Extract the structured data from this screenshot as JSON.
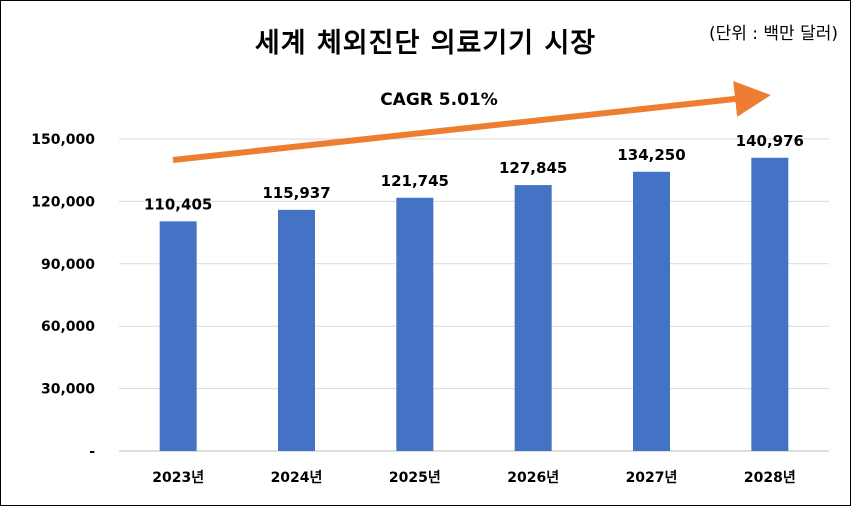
{
  "title": "세계 체외진단 의료기기 시장",
  "unit_note": "(단위 : 백만 달러)",
  "colors": {
    "bar": "#4472C4",
    "arrow": "#ED7D31",
    "grid": "#D9D9D9"
  },
  "chart_data": {
    "type": "bar",
    "categories": [
      "2023년",
      "2024년",
      "2025년",
      "2026년",
      "2027년",
      "2028년"
    ],
    "values": [
      110405,
      115937,
      121745,
      127845,
      134250,
      140976
    ],
    "value_labels": [
      "110,405",
      "115,937",
      "121,745",
      "127,845",
      "134,250",
      "140,976"
    ],
    "ylim": [
      0,
      150000
    ],
    "yticks": [
      0,
      30000,
      60000,
      90000,
      120000,
      150000
    ],
    "ytick_labels": [
      "-",
      "30,000",
      "60,000",
      "90,000",
      "120,000",
      "150,000"
    ],
    "grid": true,
    "annotation": "CAGR 5.01%"
  }
}
